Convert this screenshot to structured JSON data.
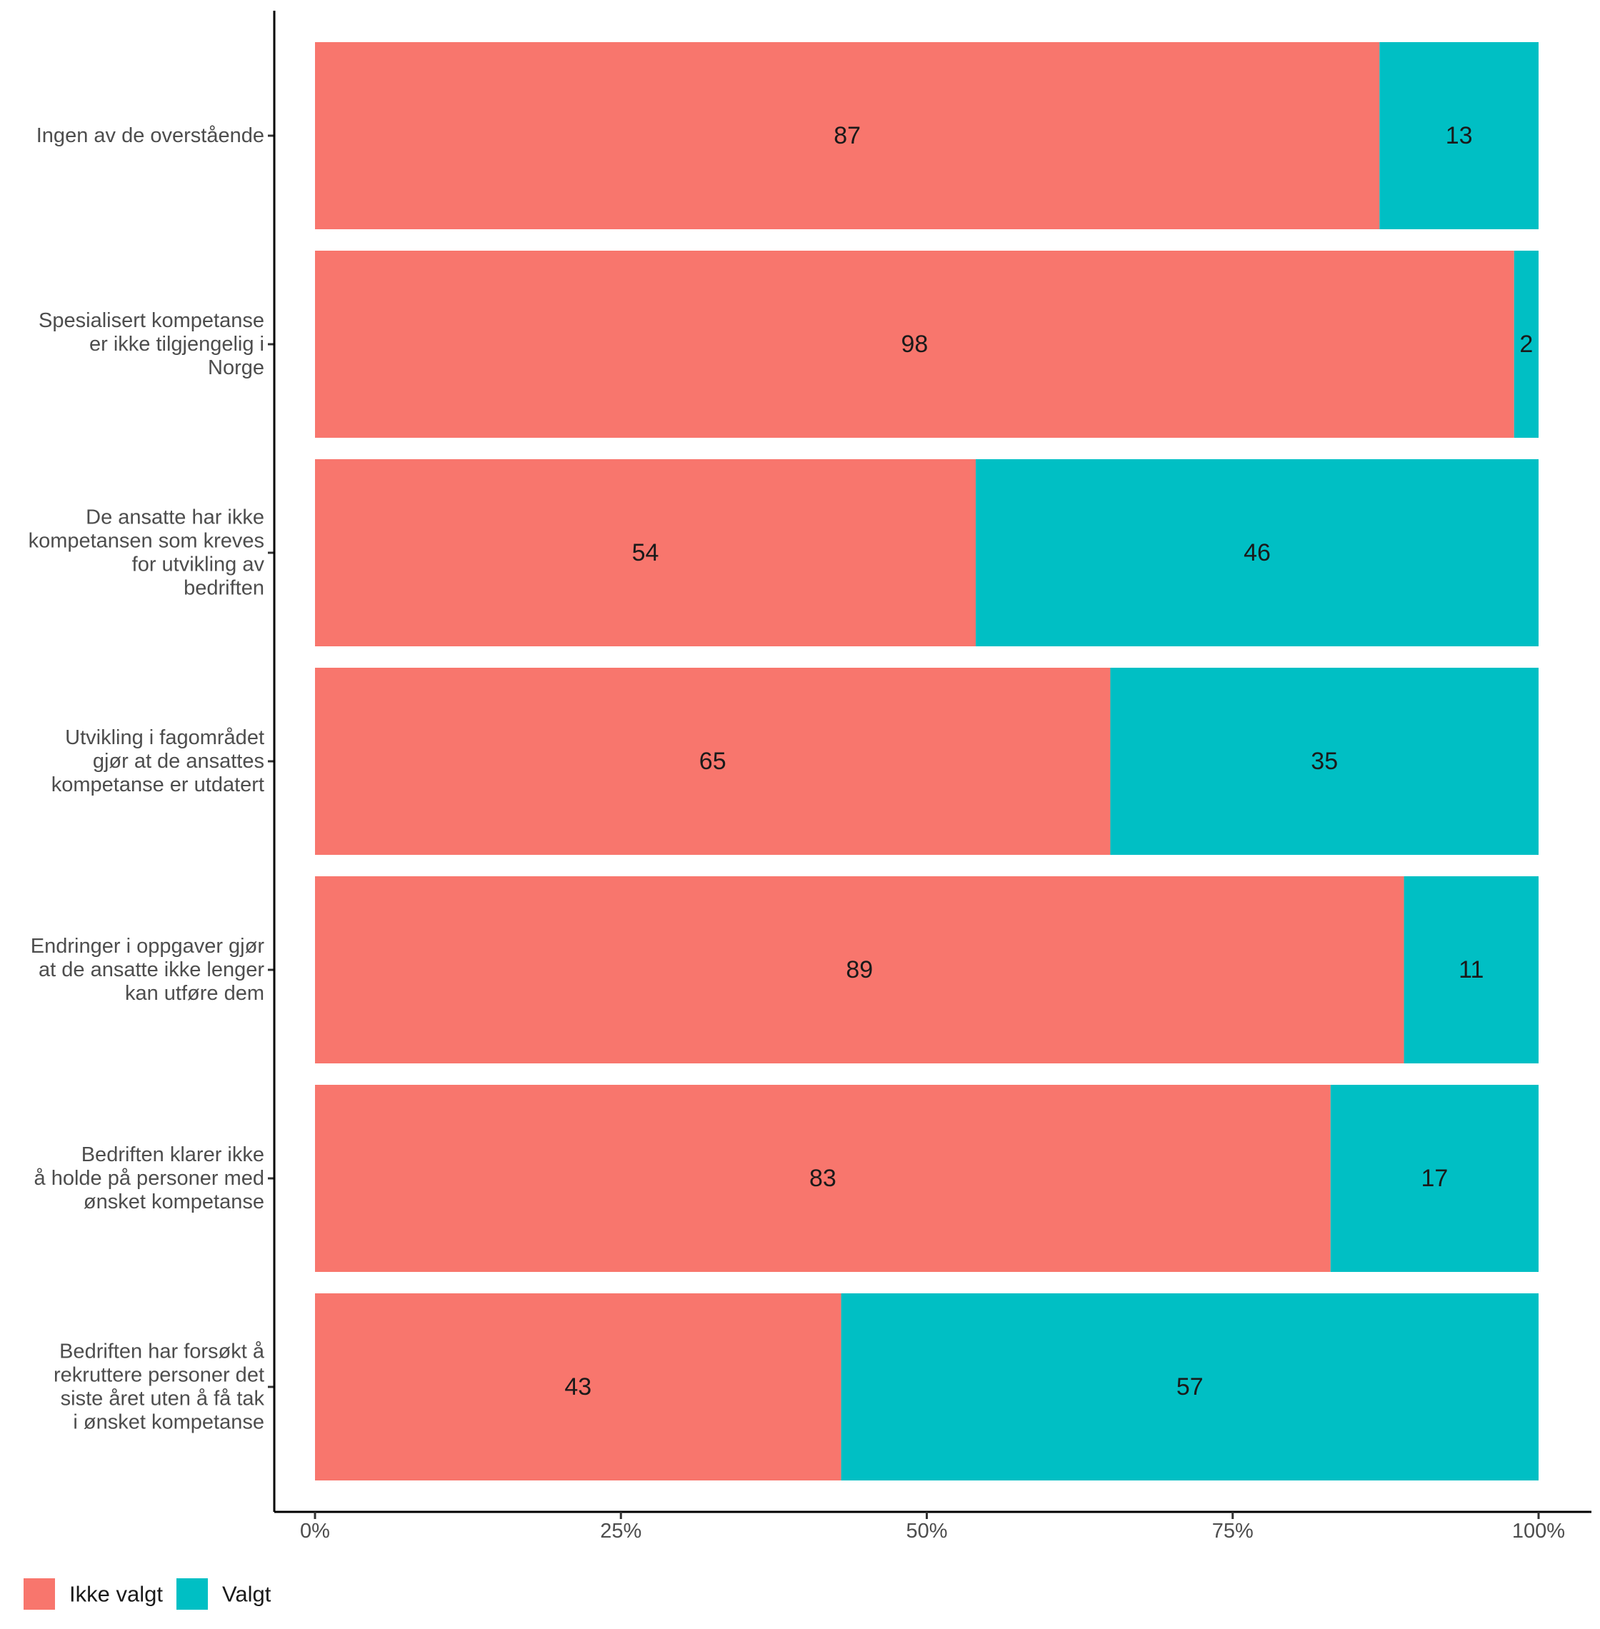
{
  "chart_data": {
    "type": "bar",
    "orientation": "horizontal",
    "stacked": true,
    "percent_scale": true,
    "categories": [
      [
        "Ingen av de overstående"
      ],
      [
        "Spesialisert kompetanse",
        "er ikke tilgjengelig i",
        "Norge"
      ],
      [
        "De ansatte har ikke",
        "kompetansen som kreves",
        "for utvikling av",
        "bedriften"
      ],
      [
        "Utvikling i fagområdet",
        "gjør at de ansattes",
        "kompetanse er utdatert"
      ],
      [
        "Endringer i oppgaver gjør",
        "at de ansatte ikke lenger",
        "kan utføre dem"
      ],
      [
        "Bedriften klarer ikke",
        "å holde på personer med",
        "ønsket kompetanse"
      ],
      [
        "Bedriften har forsøkt å",
        "rekruttere personer det",
        "siste året uten å få tak",
        "i ønsket kompetanse"
      ]
    ],
    "series": [
      {
        "name": "Ikke valgt",
        "color": "#F8766D",
        "values": [
          87,
          98,
          54,
          65,
          89,
          83,
          43
        ]
      },
      {
        "name": "Valgt",
        "color": "#00BFC4",
        "values": [
          13,
          2,
          46,
          35,
          11,
          17,
          57
        ]
      }
    ],
    "data_labels": {
      "Ikke valgt": [
        "87",
        "98",
        "54",
        "65",
        "89",
        "83",
        "43"
      ],
      "Valgt": [
        "13",
        "2",
        "46",
        "35",
        "11",
        "17",
        "57"
      ]
    },
    "x_ticks": [
      "0%",
      "25%",
      "50%",
      "75%",
      "100%"
    ],
    "xlim": [
      0,
      100
    ],
    "title": "",
    "xlabel": "",
    "ylabel": "",
    "grid": false,
    "legend_position": "bottom-left"
  }
}
